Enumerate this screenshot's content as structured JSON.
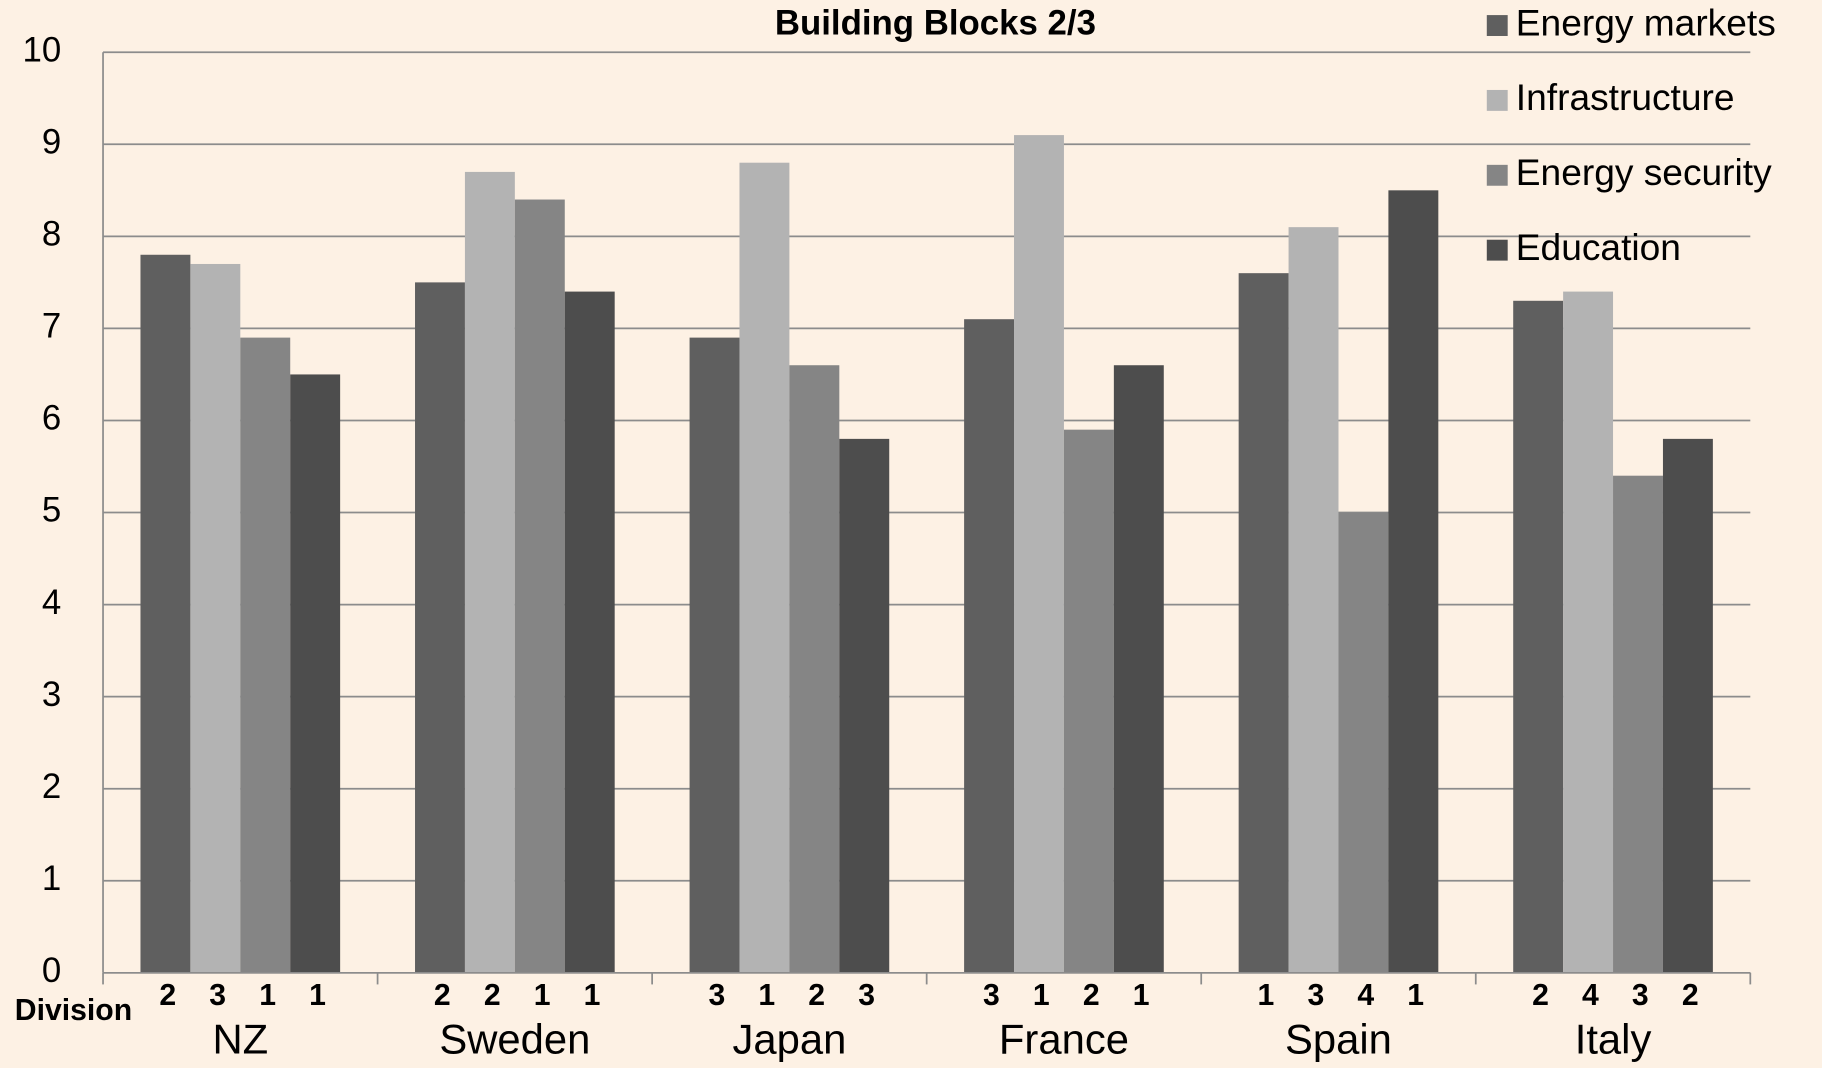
{
  "chart_data": {
    "type": "bar",
    "title": "Building  Blocks 2/3",
    "categories": [
      "NZ",
      "Sweden",
      "Japan",
      "France",
      "Spain",
      "Italy"
    ],
    "series": [
      {
        "name": "Energy markets",
        "color": "#5f5f5f",
        "values": [
          7.8,
          7.5,
          6.9,
          7.1,
          7.6,
          7.3
        ],
        "ranks": [
          2,
          2,
          3,
          3,
          1,
          2
        ]
      },
      {
        "name": "Infrastructure",
        "color": "#b3b3b3",
        "values": [
          7.7,
          8.7,
          8.8,
          9.1,
          8.1,
          7.4
        ],
        "ranks": [
          3,
          2,
          1,
          1,
          3,
          4
        ]
      },
      {
        "name": "Energy security",
        "color": "#858585",
        "values": [
          6.9,
          8.4,
          6.6,
          5.9,
          5.0,
          5.4
        ],
        "ranks": [
          1,
          1,
          2,
          2,
          4,
          3
        ]
      },
      {
        "name": "Education",
        "color": "#4d4d4d",
        "values": [
          6.5,
          7.4,
          5.8,
          6.6,
          8.5,
          5.8
        ],
        "ranks": [
          1,
          1,
          3,
          1,
          1,
          2
        ]
      }
    ],
    "rank_label": "Division",
    "ylim": [
      0,
      10
    ],
    "yticks": [
      0,
      1,
      2,
      3,
      4,
      5,
      6,
      7,
      8,
      9,
      10
    ],
    "grid": true,
    "legend": "top-right"
  }
}
